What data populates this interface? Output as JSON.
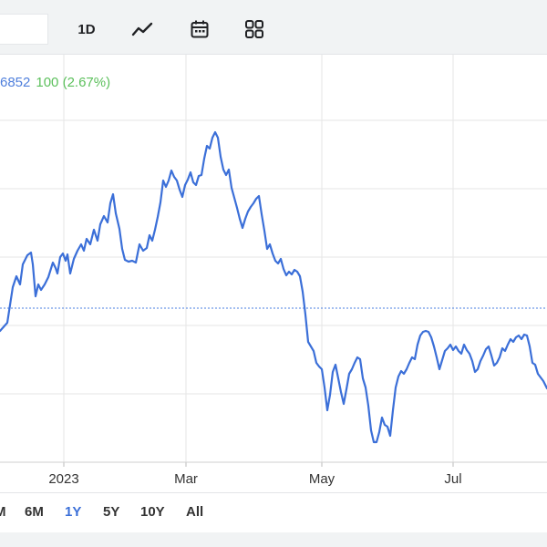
{
  "toolbar": {
    "range_label": "1D",
    "icons": [
      "line-chart-icon",
      "calendar-icon",
      "grid-icon"
    ]
  },
  "info": {
    "price": "6852",
    "change": "100 (2.67%)"
  },
  "colors": {
    "series": "#3b6fd8",
    "reference_line": "#4a7fe0",
    "grid": "#e6e6e6",
    "change_positive": "#5cc05c",
    "active_tab": "#3b6fd8"
  },
  "chart_data": {
    "type": "line",
    "x_labels": [
      "2023",
      "Mar",
      "May",
      "Jul"
    ],
    "grid": true,
    "reference_line": true,
    "series": [
      {
        "points": [
          [
            0,
            363
          ],
          [
            8,
            354
          ],
          [
            14,
            315
          ],
          [
            18,
            303
          ],
          [
            22,
            312
          ],
          [
            25,
            290
          ],
          [
            30,
            280
          ],
          [
            34,
            277
          ],
          [
            36,
            290
          ],
          [
            39,
            325
          ],
          [
            42,
            312
          ],
          [
            45,
            318
          ],
          [
            49,
            312
          ],
          [
            53,
            304
          ],
          [
            58,
            288
          ],
          [
            61,
            294
          ],
          [
            63,
            300
          ],
          [
            66,
            282
          ],
          [
            69,
            278
          ],
          [
            72,
            286
          ],
          [
            74,
            279
          ],
          [
            77,
            300
          ],
          [
            81,
            284
          ],
          [
            85,
            275
          ],
          [
            89,
            268
          ],
          [
            92,
            275
          ],
          [
            95,
            262
          ],
          [
            99,
            268
          ],
          [
            103,
            252
          ],
          [
            107,
            264
          ],
          [
            110,
            246
          ],
          [
            114,
            237
          ],
          [
            118,
            244
          ],
          [
            121,
            223
          ],
          [
            124,
            213
          ],
          [
            127,
            234
          ],
          [
            131,
            251
          ],
          [
            134,
            273
          ],
          [
            137,
            285
          ],
          [
            141,
            287
          ],
          [
            145,
            286
          ],
          [
            149,
            288
          ],
          [
            153,
            268
          ],
          [
            157,
            275
          ],
          [
            161,
            272
          ],
          [
            164,
            258
          ],
          [
            167,
            264
          ],
          [
            170,
            252
          ],
          [
            173,
            238
          ],
          [
            176,
            222
          ],
          [
            179,
            198
          ],
          [
            182,
            205
          ],
          [
            185,
            198
          ],
          [
            188,
            187
          ],
          [
            191,
            194
          ],
          [
            194,
            198
          ],
          [
            197,
            208
          ],
          [
            200,
            216
          ],
          [
            203,
            203
          ],
          [
            206,
            197
          ],
          [
            209,
            189
          ],
          [
            212,
            200
          ],
          [
            215,
            203
          ],
          [
            218,
            193
          ],
          [
            221,
            192
          ],
          [
            224,
            174
          ],
          [
            227,
            160
          ],
          [
            230,
            163
          ],
          [
            233,
            151
          ],
          [
            236,
            145
          ],
          [
            239,
            151
          ],
          [
            242,
            172
          ],
          [
            245,
            186
          ],
          [
            248,
            192
          ],
          [
            251,
            186
          ],
          [
            254,
            206
          ],
          [
            257,
            217
          ],
          [
            260,
            228
          ],
          [
            263,
            240
          ],
          [
            266,
            250
          ],
          [
            269,
            240
          ],
          [
            272,
            232
          ],
          [
            275,
            227
          ],
          [
            278,
            223
          ],
          [
            281,
            218
          ],
          [
            284,
            215
          ],
          [
            287,
            235
          ],
          [
            290,
            253
          ],
          [
            293,
            273
          ],
          [
            296,
            268
          ],
          [
            299,
            278
          ],
          [
            302,
            286
          ],
          [
            305,
            289
          ],
          [
            308,
            284
          ],
          [
            311,
            295
          ],
          [
            314,
            302
          ],
          [
            317,
            298
          ],
          [
            320,
            301
          ],
          [
            323,
            296
          ],
          [
            326,
            298
          ],
          [
            329,
            303
          ],
          [
            332,
            320
          ],
          [
            335,
            345
          ],
          [
            338,
            375
          ],
          [
            341,
            380
          ],
          [
            344,
            385
          ],
          [
            347,
            398
          ],
          [
            350,
            402
          ],
          [
            353,
            405
          ],
          [
            356,
            425
          ],
          [
            359,
            450
          ],
          [
            362,
            433
          ],
          [
            365,
            408
          ],
          [
            368,
            400
          ],
          [
            371,
            415
          ],
          [
            374,
            430
          ],
          [
            377,
            443
          ],
          [
            380,
            427
          ],
          [
            383,
            410
          ],
          [
            386,
            405
          ],
          [
            389,
            398
          ],
          [
            392,
            392
          ],
          [
            395,
            394
          ],
          [
            398,
            415
          ],
          [
            401,
            425
          ],
          [
            404,
            445
          ],
          [
            407,
            472
          ],
          [
            410,
            485
          ],
          [
            413,
            485
          ],
          [
            416,
            474
          ],
          [
            419,
            458
          ],
          [
            422,
            466
          ],
          [
            425,
            468
          ],
          [
            428,
            478
          ],
          [
            431,
            450
          ],
          [
            434,
            425
          ],
          [
            437,
            413
          ],
          [
            440,
            407
          ],
          [
            443,
            410
          ],
          [
            446,
            405
          ],
          [
            449,
            398
          ],
          [
            452,
            392
          ],
          [
            455,
            394
          ],
          [
            458,
            378
          ],
          [
            461,
            368
          ],
          [
            464,
            364
          ],
          [
            467,
            363
          ],
          [
            470,
            364
          ],
          [
            473,
            370
          ],
          [
            476,
            380
          ],
          [
            479,
            392
          ],
          [
            482,
            405
          ],
          [
            485,
            395
          ],
          [
            488,
            385
          ],
          [
            491,
            382
          ],
          [
            494,
            378
          ],
          [
            497,
            384
          ],
          [
            500,
            380
          ],
          [
            503,
            385
          ],
          [
            506,
            388
          ],
          [
            509,
            378
          ],
          [
            512,
            384
          ],
          [
            515,
            388
          ],
          [
            518,
            396
          ],
          [
            521,
            408
          ],
          [
            524,
            405
          ],
          [
            527,
            396
          ],
          [
            530,
            390
          ],
          [
            533,
            383
          ],
          [
            536,
            380
          ],
          [
            539,
            390
          ],
          [
            542,
            401
          ],
          [
            545,
            398
          ],
          [
            548,
            392
          ],
          [
            551,
            382
          ],
          [
            554,
            385
          ],
          [
            557,
            378
          ],
          [
            560,
            372
          ],
          [
            563,
            375
          ],
          [
            566,
            370
          ],
          [
            569,
            368
          ],
          [
            572,
            372
          ],
          [
            575,
            367
          ],
          [
            578,
            368
          ],
          [
            581,
            380
          ],
          [
            584,
            398
          ],
          [
            587,
            400
          ],
          [
            590,
            410
          ],
          [
            593,
            414
          ],
          [
            596,
            418
          ],
          [
            600,
            426
          ]
        ]
      }
    ]
  },
  "ranges": [
    "M",
    "6M",
    "1Y",
    "5Y",
    "10Y",
    "All"
  ],
  "active_range": "1Y"
}
